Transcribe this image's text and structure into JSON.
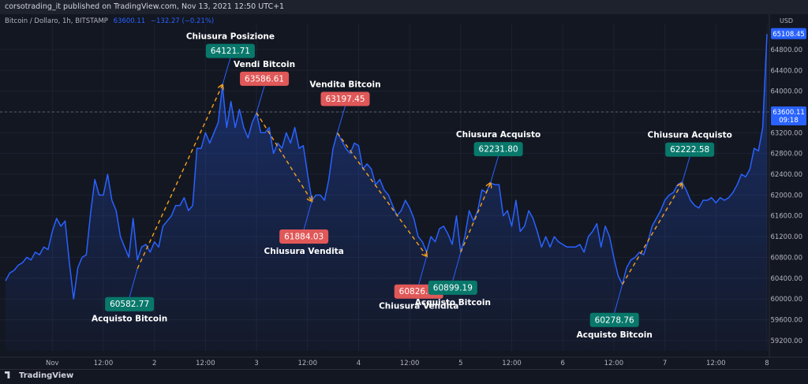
{
  "header": {
    "published": "corsotrading_it published on TradingView.com, Nov 13, 2021 12:50 UTC+1"
  },
  "legend": {
    "symbol": "Bitcoin / Dollaro, 1h, BITSTAMP",
    "price": "63600.11",
    "change": "−132.27 (−0.21%)"
  },
  "footer": {
    "brand": "TradingView"
  },
  "colors": {
    "background": "#131722",
    "line": "#2962ff",
    "buy": "#08786b",
    "sell": "#e05858",
    "arrow": "#f7a21b"
  },
  "chart_data": {
    "type": "line",
    "currency": "USD",
    "ylim": [
      59000,
      65300
    ],
    "y_ticks": [
      59200,
      59600,
      60000,
      60400,
      60800,
      61200,
      61600,
      62000,
      62400,
      62800,
      63200,
      63600,
      64000,
      64400,
      64800
    ],
    "x_ticks": [
      {
        "label": "Nov",
        "t": 0
      },
      {
        "label": "12:00",
        "t": 12
      },
      {
        "label": "2",
        "t": 24
      },
      {
        "label": "12:00",
        "t": 36
      },
      {
        "label": "3",
        "t": 48
      },
      {
        "label": "12:00",
        "t": 60
      },
      {
        "label": "4",
        "t": 72
      },
      {
        "label": "12:00",
        "t": 84
      },
      {
        "label": "5",
        "t": 96
      },
      {
        "label": "12:00",
        "t": 108
      },
      {
        "label": "6",
        "t": 120
      },
      {
        "label": "12:00",
        "t": 132
      },
      {
        "label": "7",
        "t": 144
      },
      {
        "label": "12:00",
        "t": 156
      },
      {
        "label": "8",
        "t": 168
      }
    ],
    "series": [
      {
        "points": [
          [
            -11,
            60350
          ],
          [
            -10,
            60500
          ],
          [
            -9,
            60550
          ],
          [
            -8,
            60650
          ],
          [
            -7,
            60700
          ],
          [
            -6,
            60800
          ],
          [
            -5,
            60750
          ],
          [
            -4,
            60900
          ],
          [
            -3,
            60850
          ],
          [
            -2,
            61000
          ],
          [
            -1,
            60950
          ],
          [
            0,
            61300
          ],
          [
            1,
            61550
          ],
          [
            2,
            61400
          ],
          [
            3,
            61500
          ],
          [
            4,
            60700
          ],
          [
            5,
            60000
          ],
          [
            6,
            60600
          ],
          [
            7,
            60800
          ],
          [
            8,
            60850
          ],
          [
            9,
            61650
          ],
          [
            10,
            62300
          ],
          [
            11,
            62000
          ],
          [
            12,
            62000
          ],
          [
            13,
            62400
          ],
          [
            14,
            61900
          ],
          [
            15,
            61700
          ],
          [
            16,
            61200
          ],
          [
            17,
            61000
          ],
          [
            18,
            60800
          ],
          [
            19,
            61550
          ],
          [
            20,
            60750
          ],
          [
            21,
            61000
          ],
          [
            22,
            61050
          ],
          [
            23,
            60900
          ],
          [
            24,
            61100
          ],
          [
            25,
            61000
          ],
          [
            26,
            61400
          ],
          [
            27,
            61500
          ],
          [
            28,
            61600
          ],
          [
            29,
            61800
          ],
          [
            30,
            61800
          ],
          [
            31,
            61950
          ],
          [
            32,
            61700
          ],
          [
            33,
            61800
          ],
          [
            34,
            62900
          ],
          [
            35,
            62900
          ],
          [
            36,
            63200
          ],
          [
            37,
            63000
          ],
          [
            38,
            63200
          ],
          [
            39,
            63400
          ],
          [
            40,
            64100
          ],
          [
            41,
            63300
          ],
          [
            42,
            63800
          ],
          [
            43,
            63300
          ],
          [
            44,
            63650
          ],
          [
            45,
            63300
          ],
          [
            46,
            63100
          ],
          [
            47,
            63400
          ],
          [
            48,
            63580
          ],
          [
            49,
            63200
          ],
          [
            50,
            63200
          ],
          [
            51,
            63300
          ],
          [
            52,
            62800
          ],
          [
            53,
            63000
          ],
          [
            54,
            62900
          ],
          [
            55,
            63200
          ],
          [
            56,
            63000
          ],
          [
            57,
            63300
          ],
          [
            58,
            62900
          ],
          [
            59,
            62950
          ],
          [
            60,
            62400
          ],
          [
            61,
            61900
          ],
          [
            62,
            62000
          ],
          [
            63,
            62000
          ],
          [
            64,
            61900
          ],
          [
            65,
            62300
          ],
          [
            66,
            62900
          ],
          [
            67,
            63200
          ],
          [
            68,
            63050
          ],
          [
            69,
            62900
          ],
          [
            70,
            62800
          ],
          [
            71,
            63000
          ],
          [
            72,
            62950
          ],
          [
            73,
            62500
          ],
          [
            74,
            62600
          ],
          [
            75,
            62500
          ],
          [
            76,
            62200
          ],
          [
            77,
            62300
          ],
          [
            78,
            62100
          ],
          [
            79,
            62000
          ],
          [
            80,
            61800
          ],
          [
            81,
            61600
          ],
          [
            82,
            61700
          ],
          [
            83,
            61900
          ],
          [
            84,
            61750
          ],
          [
            85,
            61550
          ],
          [
            86,
            61200
          ],
          [
            87,
            61100
          ],
          [
            88,
            60900
          ],
          [
            89,
            61200
          ],
          [
            90,
            61100
          ],
          [
            91,
            61350
          ],
          [
            92,
            61400
          ],
          [
            93,
            61250
          ],
          [
            94,
            61050
          ],
          [
            95,
            61600
          ],
          [
            96,
            60900
          ],
          [
            97,
            61200
          ],
          [
            98,
            61700
          ],
          [
            99,
            61500
          ],
          [
            100,
            61700
          ],
          [
            101,
            62100
          ],
          [
            102,
            62050
          ],
          [
            103,
            62230
          ],
          [
            104,
            62200
          ],
          [
            105,
            62200
          ],
          [
            106,
            61600
          ],
          [
            107,
            61700
          ],
          [
            108,
            61400
          ],
          [
            109,
            61900
          ],
          [
            110,
            61300
          ],
          [
            111,
            61400
          ],
          [
            112,
            61700
          ],
          [
            113,
            61550
          ],
          [
            114,
            61300
          ],
          [
            115,
            61000
          ],
          [
            116,
            61200
          ],
          [
            117,
            61000
          ],
          [
            118,
            61200
          ],
          [
            119,
            61100
          ],
          [
            120,
            61050
          ],
          [
            121,
            61000
          ],
          [
            122,
            61000
          ],
          [
            123,
            61000
          ],
          [
            124,
            61050
          ],
          [
            125,
            60900
          ],
          [
            126,
            61200
          ],
          [
            127,
            61300
          ],
          [
            128,
            61450
          ],
          [
            129,
            61000
          ],
          [
            130,
            61400
          ],
          [
            131,
            61200
          ],
          [
            132,
            60800
          ],
          [
            133,
            60450
          ],
          [
            134,
            60280
          ],
          [
            135,
            60600
          ],
          [
            136,
            60750
          ],
          [
            137,
            60800
          ],
          [
            138,
            60900
          ],
          [
            139,
            60850
          ],
          [
            140,
            61100
          ],
          [
            141,
            61400
          ],
          [
            142,
            61550
          ],
          [
            143,
            61700
          ],
          [
            144,
            61900
          ],
          [
            145,
            62000
          ],
          [
            146,
            62050
          ],
          [
            147,
            62200
          ],
          [
            148,
            62250
          ],
          [
            149,
            62100
          ],
          [
            150,
            61900
          ],
          [
            151,
            61800
          ],
          [
            152,
            61750
          ],
          [
            153,
            61900
          ],
          [
            154,
            61900
          ],
          [
            155,
            61950
          ],
          [
            156,
            61850
          ],
          [
            157,
            61950
          ],
          [
            158,
            61900
          ],
          [
            159,
            61950
          ],
          [
            160,
            62050
          ],
          [
            161,
            62200
          ],
          [
            162,
            62400
          ],
          [
            163,
            62350
          ],
          [
            164,
            62500
          ],
          [
            165,
            62900
          ],
          [
            166,
            62850
          ],
          [
            167,
            63300
          ],
          [
            168,
            65100
          ]
        ]
      }
    ],
    "last_price": {
      "value": "65108.45",
      "y": 65108.45
    },
    "crosshair": {
      "value": "63600.11",
      "time": "09:18",
      "y": 63600.11
    },
    "annotations": [
      {
        "kind": "buy",
        "title": "Acquisto Bitcoin",
        "value": "60582.77",
        "at": [
          20,
          60582.77
        ],
        "title_pos": "below"
      },
      {
        "kind": "buy",
        "title": "Chiusura Posizione",
        "value": "64121.71",
        "at": [
          40,
          64121.71
        ],
        "title_pos": "above"
      },
      {
        "kind": "sell",
        "title": "Vendi Bitcoin",
        "value": "63586.61",
        "at": [
          48,
          63586.61
        ],
        "title_pos": "above"
      },
      {
        "kind": "sell",
        "title": "Chiusura Vendita",
        "value": "61884.03",
        "at": [
          61,
          61884.03
        ],
        "title_pos": "below"
      },
      {
        "kind": "sell",
        "title": "Vendita Bitcoin",
        "value": "63197.45",
        "at": [
          67,
          63197.45
        ],
        "title_pos": "above"
      },
      {
        "kind": "sell",
        "title": "Chiusura Vendita",
        "value": "60826.00",
        "at": [
          88,
          60826.0
        ],
        "title_pos": "below"
      },
      {
        "kind": "buy",
        "title": "Acquisto Bitcoin",
        "value": "60899.19",
        "at": [
          96,
          60899.19
        ],
        "title_pos": "below"
      },
      {
        "kind": "buy",
        "title": "Chiusura Acquisto",
        "value": "62231.80",
        "at": [
          103,
          62231.8
        ],
        "title_pos": "above"
      },
      {
        "kind": "buy",
        "title": "Acquisto Bitcoin",
        "value": "60278.76",
        "at": [
          134,
          60278.76
        ],
        "title_pos": "below"
      },
      {
        "kind": "buy",
        "title": "Chiusura Acquisto",
        "value": "62222.58",
        "at": [
          148,
          62222.58
        ],
        "title_pos": "above"
      }
    ],
    "trades": [
      {
        "from": 0,
        "to": 1
      },
      {
        "from": 2,
        "to": 3
      },
      {
        "from": 4,
        "to": 5
      },
      {
        "from": 6,
        "to": 7
      },
      {
        "from": 8,
        "to": 9
      }
    ]
  }
}
